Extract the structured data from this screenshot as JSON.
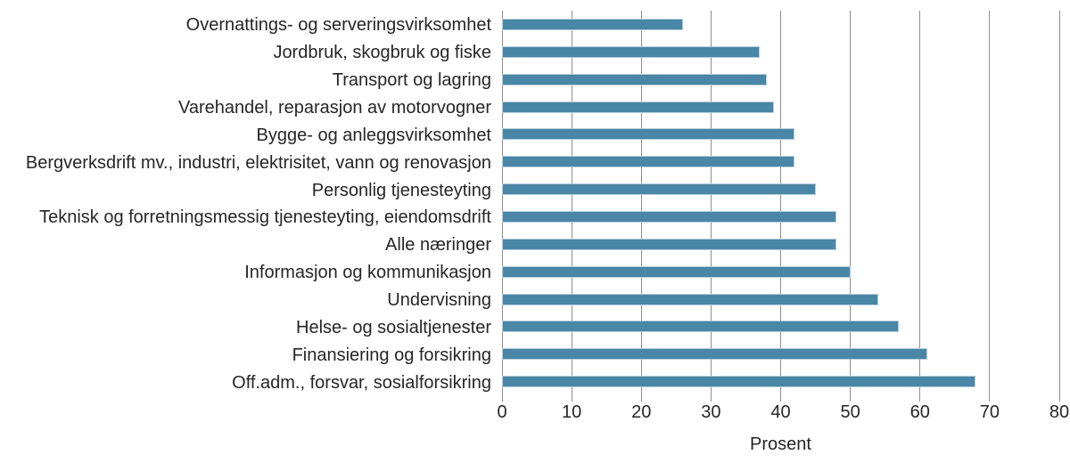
{
  "chart_data": {
    "type": "bar",
    "orientation": "horizontal",
    "title": "",
    "xlabel": "Prosent",
    "ylabel": "",
    "xlim": [
      0,
      80
    ],
    "xticks": [
      0,
      10,
      20,
      30,
      40,
      50,
      60,
      70,
      80
    ],
    "grid": "vertical-only",
    "legend": "none",
    "categories": [
      "Overnattings- og serveringsvirksomhet",
      "Jordbruk, skogbruk og fiske",
      "Transport og lagring",
      "Varehandel, reparasjon av motorvogner",
      "Bygge- og anleggsvirksomhet",
      "Bergverksdrift mv., industri, elektrisitet, vann og renovasjon",
      "Personlig tjenesteyting",
      "Teknisk og forretningsmessig tjenesteyting, eiendomsdrift",
      "Alle næringer",
      "Informasjon og kommunikasjon",
      "Undervisning",
      "Helse- og sosialtjenester",
      "Finansiering og forsikring",
      "Off.adm., forsvar, sosialforsikring"
    ],
    "values": [
      26,
      37,
      38,
      39,
      42,
      42,
      45,
      48,
      48,
      50,
      54,
      57,
      61,
      68
    ],
    "colors": {
      "bar_fill": "#4a86a5",
      "bar_border": "#b4cedd",
      "gridline": "#8f8f8f",
      "text": "#262626",
      "background": "#ffffff"
    }
  }
}
